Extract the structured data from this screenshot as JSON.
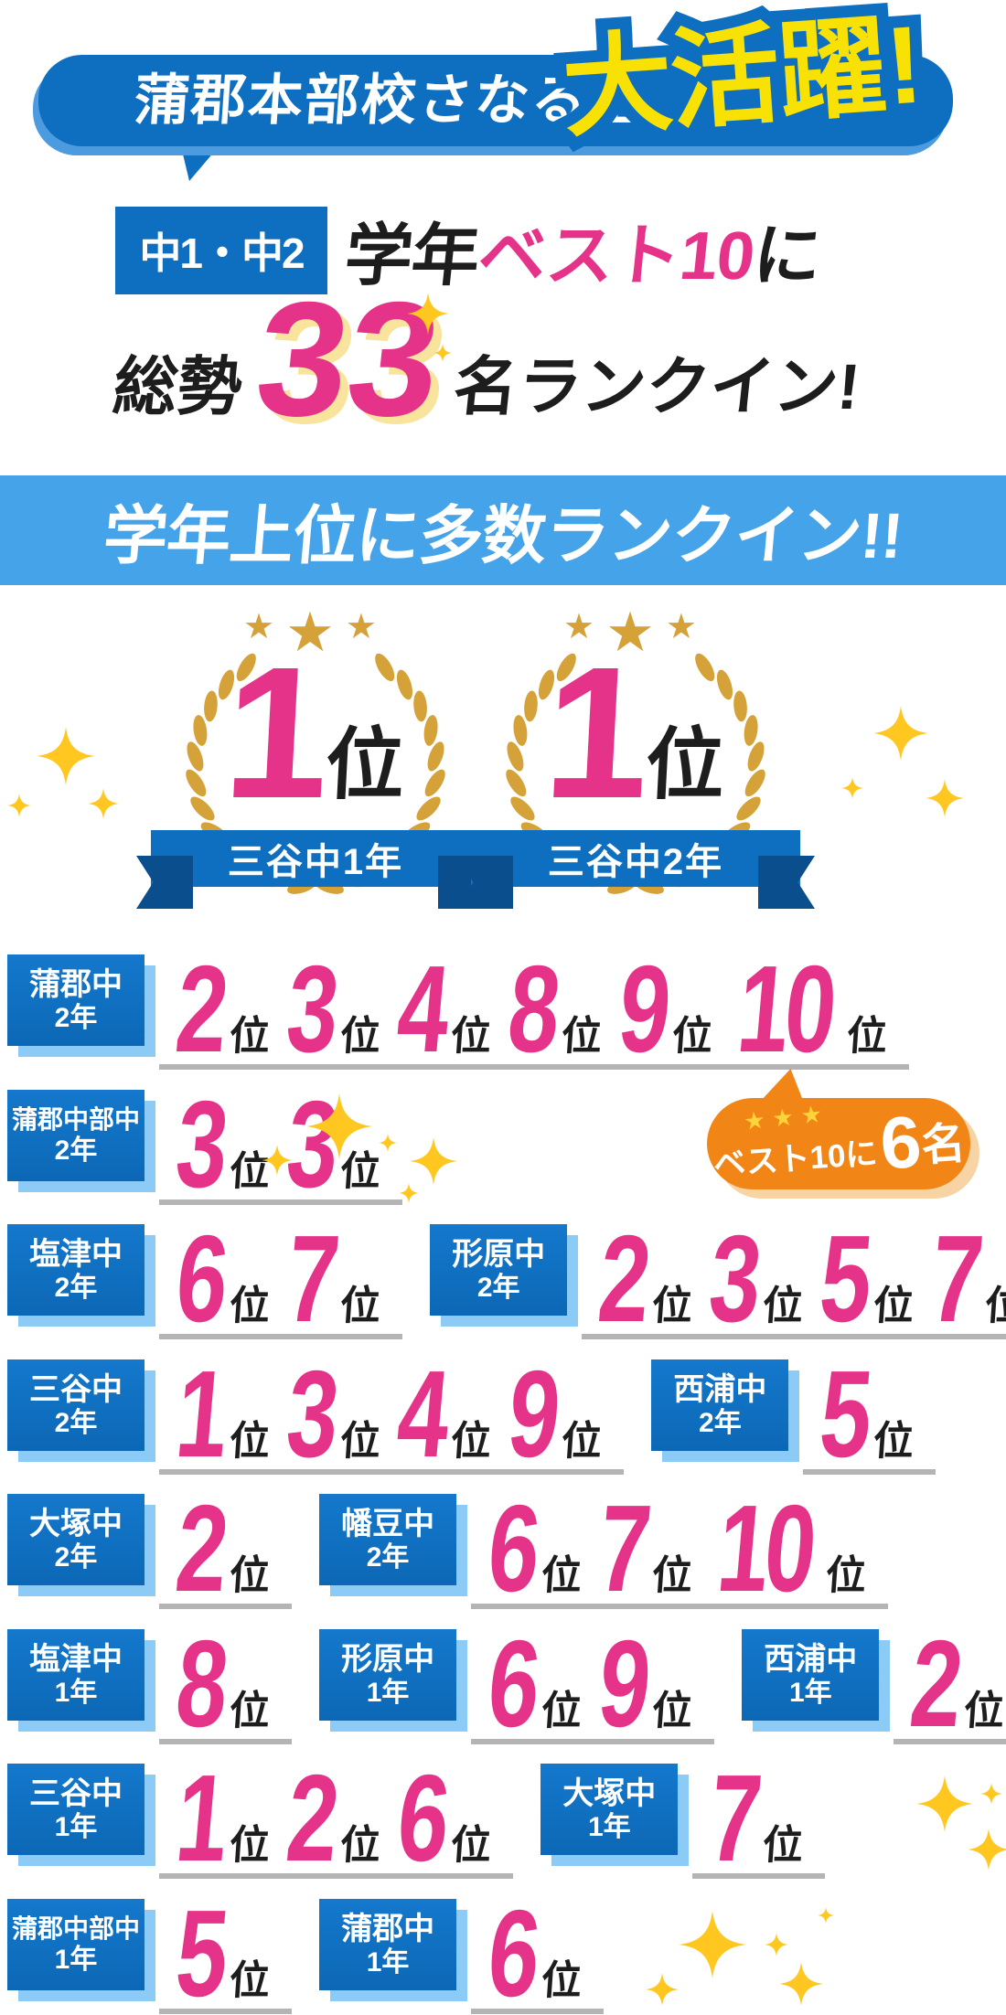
{
  "header": {
    "bubble_text": "蒲郡本部校さなる生",
    "highlight_text": "大活躍!"
  },
  "subtitle": {
    "grade_badge": "中1・中2",
    "pre": "学年",
    "highlight": "ベスト10",
    "post": "に"
  },
  "total_line": {
    "pre": "総勢",
    "number": "33",
    "post": "名ランクイン!"
  },
  "band": {
    "text": "学年上位に多数ランクイン!!"
  },
  "top_badges": [
    {
      "rank": "1",
      "suffix": "位",
      "ribbon": "三谷中1年"
    },
    {
      "rank": "1",
      "suffix": "位",
      "ribbon": "三谷中2年"
    }
  ],
  "rank_suffix": "位",
  "rows": [
    {
      "groups": [
        {
          "school": "蒲郡中",
          "grade": "2年",
          "ranks": [
            "2",
            "3",
            "4",
            "8",
            "9",
            "10"
          ]
        }
      ]
    },
    {
      "groups": [
        {
          "school": "蒲郡中部中",
          "grade": "2年",
          "ranks": [
            "3",
            "3"
          ]
        }
      ],
      "callout": {
        "stars": "★★★",
        "label": "ベスト10に",
        "count": "6",
        "suffix": "名"
      }
    },
    {
      "groups": [
        {
          "school": "塩津中",
          "grade": "2年",
          "ranks": [
            "6",
            "7"
          ]
        },
        {
          "school": "形原中",
          "grade": "2年",
          "ranks": [
            "2",
            "3",
            "5",
            "7"
          ]
        }
      ]
    },
    {
      "groups": [
        {
          "school": "三谷中",
          "grade": "2年",
          "ranks": [
            "1",
            "3",
            "4",
            "9"
          ]
        },
        {
          "school": "西浦中",
          "grade": "2年",
          "ranks": [
            "5"
          ]
        }
      ]
    },
    {
      "groups": [
        {
          "school": "大塚中",
          "grade": "2年",
          "ranks": [
            "2"
          ]
        },
        {
          "school": "幡豆中",
          "grade": "2年",
          "ranks": [
            "6",
            "7",
            "10"
          ]
        }
      ]
    },
    {
      "groups": [
        {
          "school": "塩津中",
          "grade": "1年",
          "ranks": [
            "8"
          ]
        },
        {
          "school": "形原中",
          "grade": "1年",
          "ranks": [
            "6",
            "9"
          ]
        },
        {
          "school": "西浦中",
          "grade": "1年",
          "ranks": [
            "2"
          ]
        }
      ]
    },
    {
      "groups": [
        {
          "school": "三谷中",
          "grade": "1年",
          "ranks": [
            "1",
            "2",
            "6"
          ]
        },
        {
          "school": "大塚中",
          "grade": "1年",
          "ranks": [
            "7"
          ]
        }
      ]
    },
    {
      "groups": [
        {
          "school": "蒲郡中部中",
          "grade": "1年",
          "ranks": [
            "5"
          ]
        },
        {
          "school": "蒲郡中",
          "grade": "1年",
          "ranks": [
            "6"
          ]
        }
      ]
    }
  ],
  "decor": {
    "star": "★"
  },
  "colors": {
    "blue": "#0E6FC1",
    "band_blue": "#45A3EA",
    "pale_blue": "#8BCBF5",
    "navy": "#0A4E8E",
    "pink": "#E6338A",
    "yellow": "#F8E104",
    "pale_yellow": "#F8E49C",
    "gold": "#D4A238",
    "sparkle": "#FFC71F",
    "orange": "#F18616",
    "pale_orange": "#F8D3A4",
    "underline_gray": "#B4B4B4"
  }
}
